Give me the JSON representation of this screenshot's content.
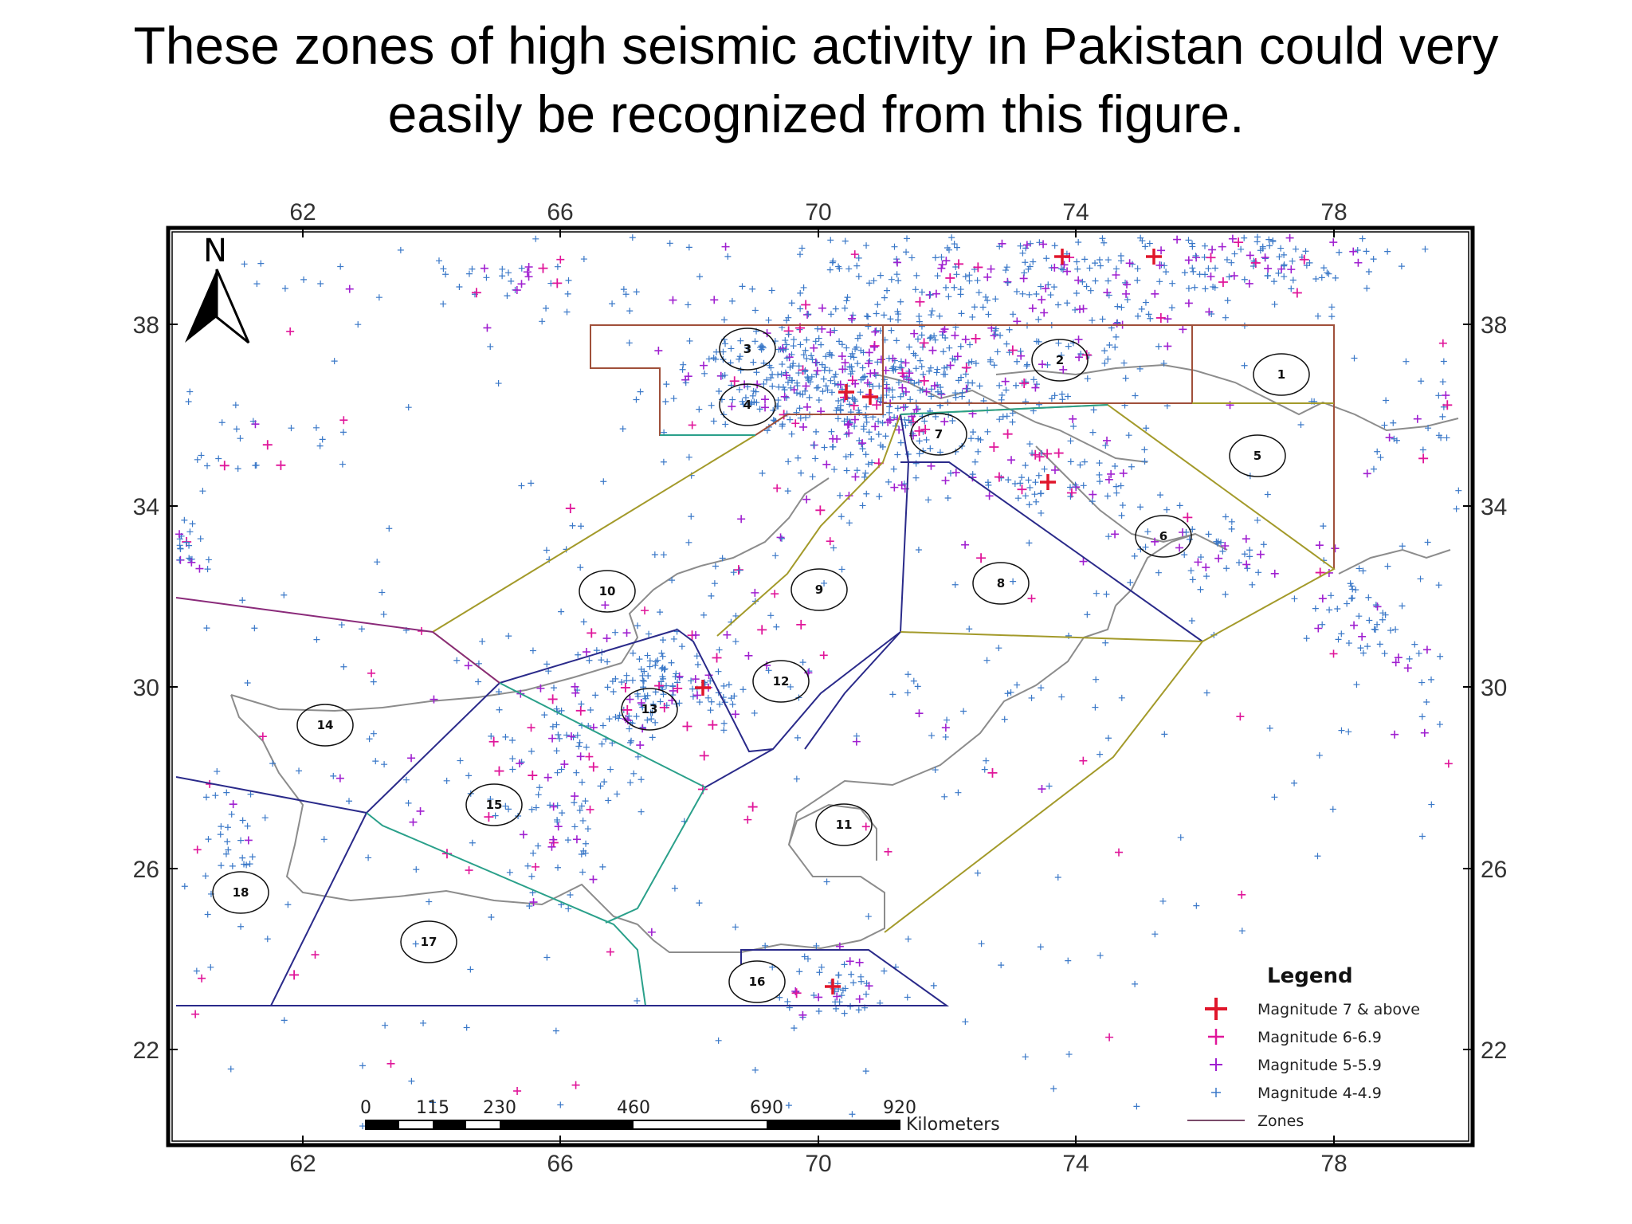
{
  "title": {
    "line1": "These zones of high seismic activity in Pakistan could very",
    "line2": "easily be recognized from this figure."
  },
  "map": {
    "north_label": "N",
    "longitude_ticks": [
      "62",
      "66",
      "70",
      "74",
      "78"
    ],
    "latitude_ticks": [
      "38",
      "34",
      "30",
      "26",
      "22"
    ],
    "zone_labels": [
      "1",
      "2",
      "3",
      "4",
      "5",
      "6",
      "7",
      "8",
      "9",
      "10",
      "11",
      "12",
      "13",
      "14",
      "15",
      "16",
      "17",
      "18"
    ],
    "legend": {
      "title": "Legend",
      "items": [
        {
          "label": "Magnitude 7 & above",
          "color": "#e0162b"
        },
        {
          "label": "Magnitude 6-6.9",
          "color": "#e0169a"
        },
        {
          "label": "Magnitude 5-5.9",
          "color": "#a020d0"
        },
        {
          "label": "Magnitude 4-4.9",
          "color": "#3a78c8"
        },
        {
          "label": "Zones",
          "color": "#7a4a6a"
        }
      ]
    },
    "scale_bar": {
      "ticks": [
        "0",
        "115",
        "230",
        "460",
        "690",
        "920"
      ],
      "unit": "Kilometers"
    },
    "colors": {
      "zone_olive": "#a39a2a",
      "zone_navy": "#2a2a8a",
      "zone_teal": "#2aa08a",
      "zone_purple": "#8a2a7a",
      "zone_brown": "#a0503a",
      "coast": "#8c8c8c",
      "mag7": "#e0162b",
      "mag6": "#e0169a",
      "mag5": "#a020d0",
      "mag4": "#3a78c8"
    }
  }
}
